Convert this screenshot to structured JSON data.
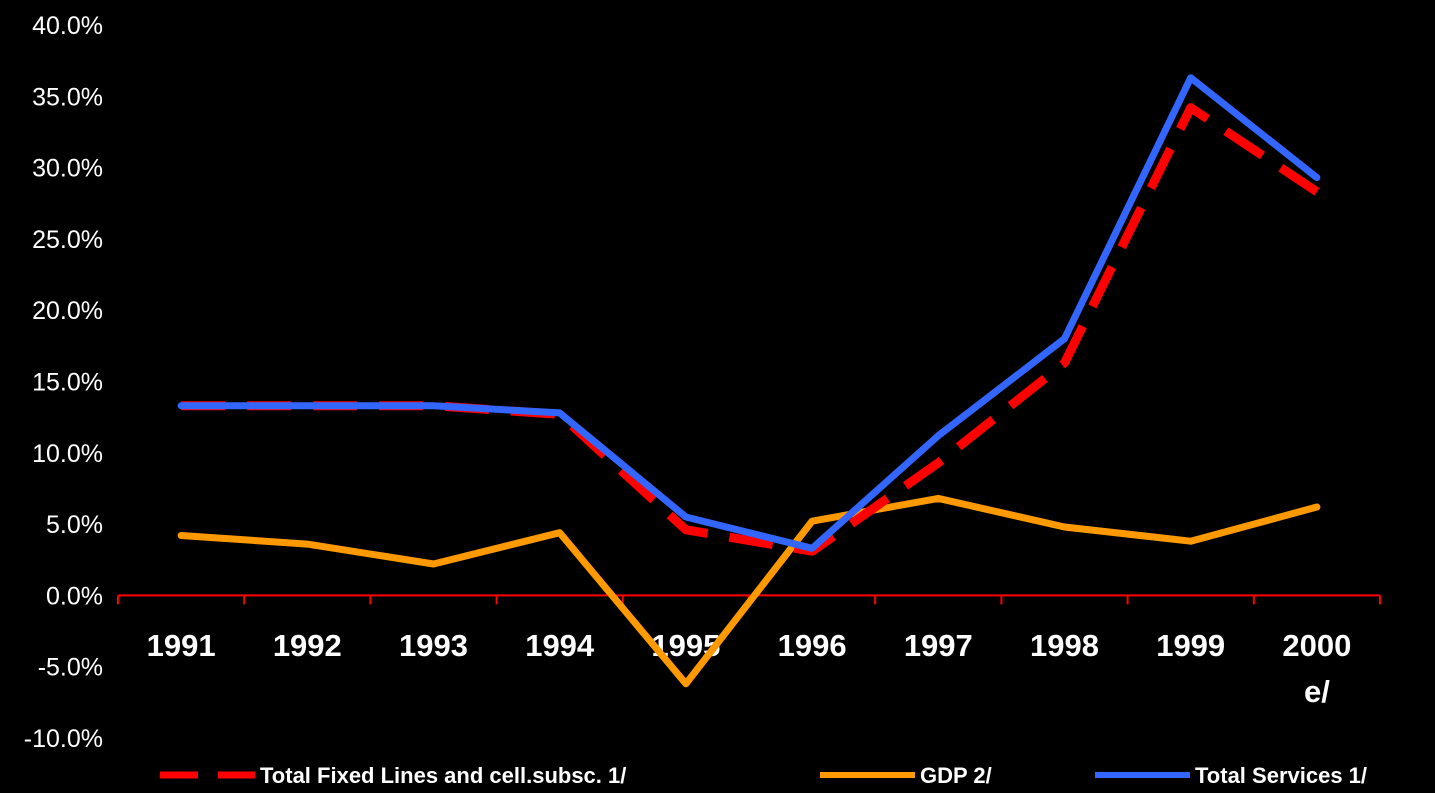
{
  "chart_data": {
    "type": "line",
    "categories": [
      "1991",
      "1992",
      "1993",
      "1994",
      "1995",
      "1996",
      "1997",
      "1998",
      "1999",
      "2000"
    ],
    "category_sublabels": [
      "",
      "",
      "",
      "",
      "",
      "",
      "",
      "",
      "",
      "e/"
    ],
    "yticks": [
      "40.0%",
      "35.0%",
      "30.0%",
      "25.0%",
      "20.0%",
      "15.0%",
      "10.0%",
      "5.0%",
      "0.0%",
      "-5.0%",
      "-10.0%"
    ],
    "ylim": [
      -10,
      40
    ],
    "title": "",
    "xlabel": "",
    "ylabel": "",
    "grid": false,
    "legend_position": "bottom",
    "axis_color": "#ff0000",
    "series": [
      {
        "name": "Total Fixed Lines and cell.subsc. 1/",
        "color": "#ff0000",
        "style": "dashed",
        "values": [
          13.3,
          13.3,
          13.3,
          12.7,
          4.6,
          3.1,
          9.3,
          16.3,
          34.2,
          28.3
        ]
      },
      {
        "name": "GDP 2/",
        "color": "#ff9900",
        "style": "solid",
        "values": [
          4.2,
          3.6,
          2.2,
          4.4,
          -6.2,
          5.2,
          6.8,
          4.8,
          3.8,
          6.2
        ]
      },
      {
        "name": "Total Services 1/",
        "color": "#3366ff",
        "style": "solid",
        "values": [
          13.3,
          13.3,
          13.3,
          12.8,
          5.5,
          3.3,
          11.2,
          18.0,
          36.3,
          29.3
        ]
      }
    ]
  }
}
